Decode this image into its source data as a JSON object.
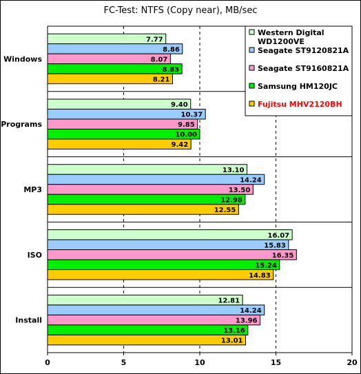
{
  "chart_data": {
    "type": "bar",
    "orientation": "horizontal",
    "title": "FC-Test: NTFS (Copy near), MB/sec",
    "xlabel": "",
    "ylabel": "",
    "xlim": [
      0,
      20
    ],
    "xticks": [
      "0",
      "5",
      "10",
      "15",
      "20"
    ],
    "grid": "vertical dashed",
    "legend_position": "top-right",
    "categories": [
      "Windows",
      "Programs",
      "MP3",
      "ISO",
      "Install"
    ],
    "series": [
      {
        "name": "Western Digital WD1200VE",
        "legend_lines": [
          "Western Digital",
          "WD1200VE"
        ],
        "color": "#ccffcc",
        "text_color": "#000000",
        "values": [
          7.77,
          9.4,
          13.1,
          16.07,
          12.81
        ],
        "labels": [
          "7.77",
          "9.40",
          "13.10",
          "16.07",
          "12.81"
        ]
      },
      {
        "name": "Seagate ST9120821A",
        "legend_lines": [
          "Seagate ST9120821A"
        ],
        "color": "#99ccff",
        "text_color": "#000000",
        "values": [
          8.86,
          10.37,
          14.24,
          15.83,
          14.24
        ],
        "labels": [
          "8.86",
          "10.37",
          "14.24",
          "15.83",
          "14.24"
        ]
      },
      {
        "name": "Seagate ST9160821A",
        "legend_lines": [
          "Seagate ST9160821A"
        ],
        "color": "#ff99cc",
        "text_color": "#000000",
        "values": [
          8.07,
          9.85,
          13.5,
          16.35,
          13.96
        ],
        "labels": [
          "8.07",
          "9.85",
          "13.50",
          "16.35",
          "13.96"
        ]
      },
      {
        "name": "Samsung HM120JC",
        "legend_lines": [
          "Samsung HM120JC"
        ],
        "color": "#00ee00",
        "text_color": "#000000",
        "values": [
          8.83,
          10.0,
          12.98,
          15.24,
          13.16
        ],
        "labels": [
          "8.83",
          "10.00",
          "12.98",
          "15.24",
          "13.16"
        ]
      },
      {
        "name": "Fujitsu MHV2120BH",
        "legend_lines": [
          "Fujitsu MHV2120BH"
        ],
        "color": "#ffcc00",
        "text_color": "#ff0000",
        "values": [
          8.21,
          9.42,
          12.55,
          14.83,
          13.01
        ],
        "labels": [
          "8.21",
          "9.42",
          "12.55",
          "14.83",
          "13.01"
        ]
      }
    ]
  }
}
